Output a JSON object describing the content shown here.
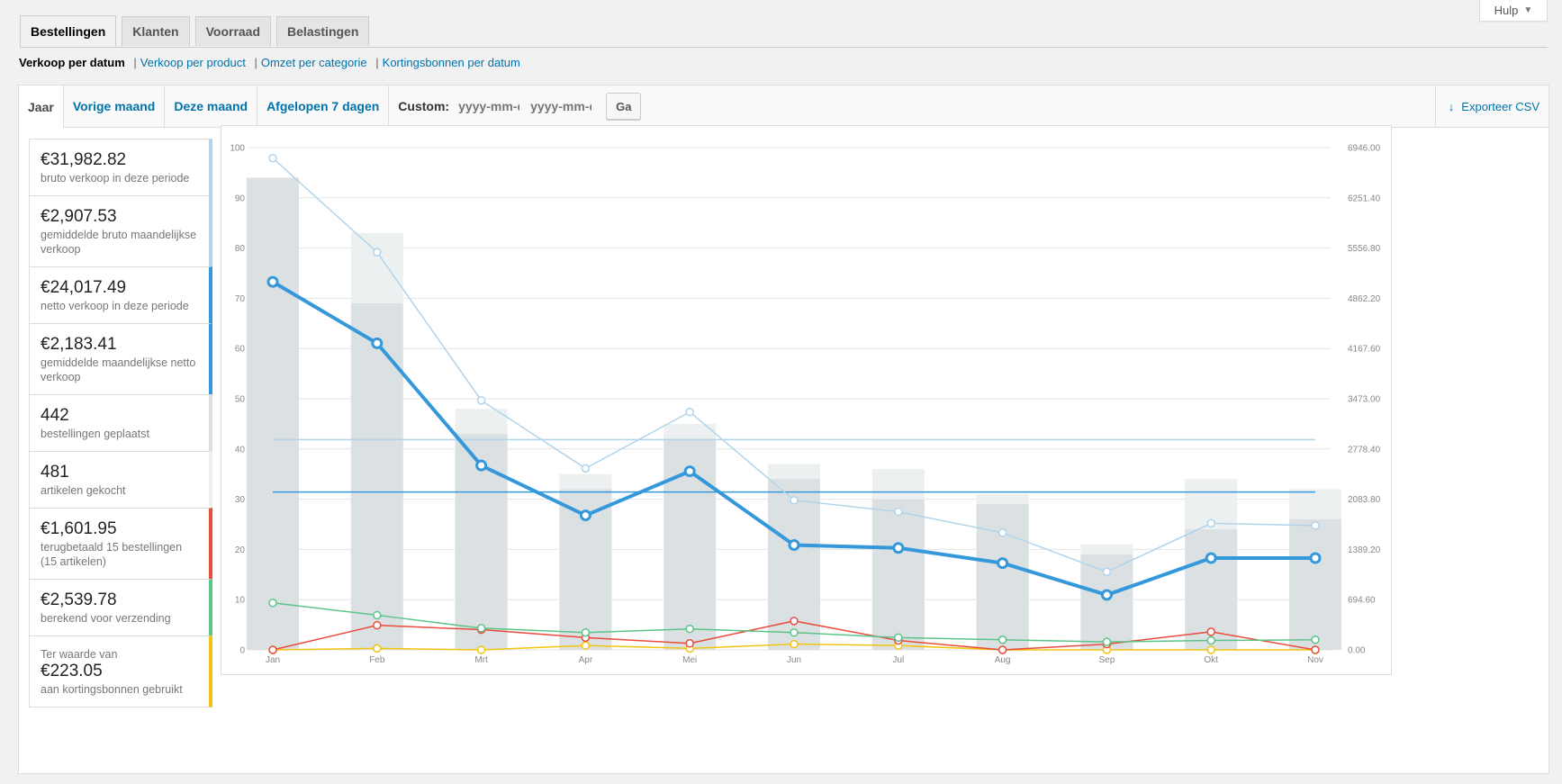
{
  "help": {
    "label": "Hulp"
  },
  "tabs": [
    "Bestellingen",
    "Klanten",
    "Voorraad",
    "Belastingen"
  ],
  "sub_nav": {
    "current": "Verkoop per datum",
    "links": [
      "Verkoop per product",
      "Omzet per categorie",
      "Kortingsbonnen per datum"
    ]
  },
  "range": {
    "items": [
      "Jaar",
      "Vorige maand",
      "Deze maand",
      "Afgelopen 7 dagen"
    ],
    "custom_label": "Custom:",
    "start_placeholder": "yyyy-mm-dd",
    "end_placeholder": "yyyy-mm-dd",
    "go_label": "Ga",
    "export_label": "Exporteer CSV"
  },
  "legend": [
    {
      "pre": "",
      "value": "€31,982.82",
      "desc": "bruto verkoop in deze periode",
      "color": "#b1d4ea"
    },
    {
      "pre": "",
      "value": "€2,907.53",
      "desc": "gemiddelde bruto maandelijkse verkoop",
      "color": "#b1d4ea"
    },
    {
      "pre": "",
      "value": "€24,017.49",
      "desc": "netto verkoop in deze periode",
      "color": "#3498db"
    },
    {
      "pre": "",
      "value": "€2,183.41",
      "desc": "gemiddelde maandelijkse netto verkoop",
      "color": "#3498db"
    },
    {
      "pre": "",
      "value": "442",
      "desc": "bestellingen geplaatst",
      "color": "#dbe1e3"
    },
    {
      "pre": "",
      "value": "481",
      "desc": "artikelen gekocht",
      "color": "#ecf0f1"
    },
    {
      "pre": "",
      "value": "€1,601.95",
      "desc": "terugbetaald 15 bestellingen (15 artikelen)",
      "color": "#e74c3c"
    },
    {
      "pre": "",
      "value": "€2,539.78",
      "desc": "berekend voor verzending",
      "color": "#5cc488"
    },
    {
      "pre": "Ter waarde van",
      "value": "€223.05",
      "desc": "aan kortingsbonnen gebruikt",
      "color": "#f1c40f"
    }
  ],
  "chart_data": {
    "type": "bar",
    "categories": [
      "Jan",
      "Feb",
      "Mrt",
      "Apr",
      "Mei",
      "Jun",
      "Jul",
      "Aug",
      "Sep",
      "Okt",
      "Nov"
    ],
    "left_axis": {
      "ticks": [
        "0",
        "10",
        "20",
        "30",
        "40",
        "50",
        "60",
        "70",
        "80",
        "90",
        "100"
      ],
      "ylim": [
        0,
        100
      ]
    },
    "right_axis": {
      "ticks": [
        "0.00",
        "694.60",
        "1389.20",
        "2083.80",
        "2778.40",
        "3473.00",
        "4167.60",
        "4862.20",
        "5556.80",
        "6251.40",
        "6946.00"
      ],
      "ylim": [
        0,
        6946
      ]
    },
    "bars": {
      "items": {
        "axis": "left",
        "values": [
          94,
          83,
          48,
          35,
          45,
          37,
          36,
          31,
          21,
          34,
          32
        ],
        "color": "#ecf0f1"
      },
      "orders": {
        "axis": "left",
        "values": [
          94,
          69,
          43,
          32,
          42,
          34,
          30,
          29,
          19,
          24,
          26
        ],
        "color": "#dbe1e3"
      }
    },
    "lines": [
      {
        "key": "gross",
        "axis": "right",
        "values": [
          6800,
          5500,
          3450,
          2510,
          3290,
          2070,
          1910,
          1620,
          1080,
          1750,
          1720
        ],
        "color": "#b1d4ea",
        "width": 1.5
      },
      {
        "key": "net",
        "axis": "right",
        "values": [
          5090,
          4240,
          2550,
          1860,
          2470,
          1450,
          1410,
          1200,
          760,
          1270,
          1270
        ],
        "color": "#3498db",
        "width": 4
      },
      {
        "key": "shipping",
        "axis": "right",
        "values": [
          650,
          480,
          300,
          240,
          290,
          240,
          170,
          140,
          110,
          130,
          140
        ],
        "color": "#5cc488",
        "width": 1.5
      },
      {
        "key": "refunds",
        "axis": "right",
        "values": [
          0,
          340,
          280,
          170,
          90,
          400,
          130,
          0,
          80,
          250,
          0
        ],
        "color": "#e74c3c",
        "width": 1.5
      },
      {
        "key": "coupons",
        "axis": "right",
        "values": [
          0,
          20,
          0,
          60,
          20,
          80,
          60,
          0,
          0,
          0,
          0
        ],
        "color": "#f1c40f",
        "width": 1.5
      }
    ],
    "averages": [
      {
        "key": "avg_gross",
        "axis": "right",
        "value": 2907.53,
        "color": "#b1d4ea"
      },
      {
        "key": "avg_net",
        "axis": "right",
        "value": 2183.41,
        "color": "#3498db"
      }
    ],
    "grid": true
  }
}
